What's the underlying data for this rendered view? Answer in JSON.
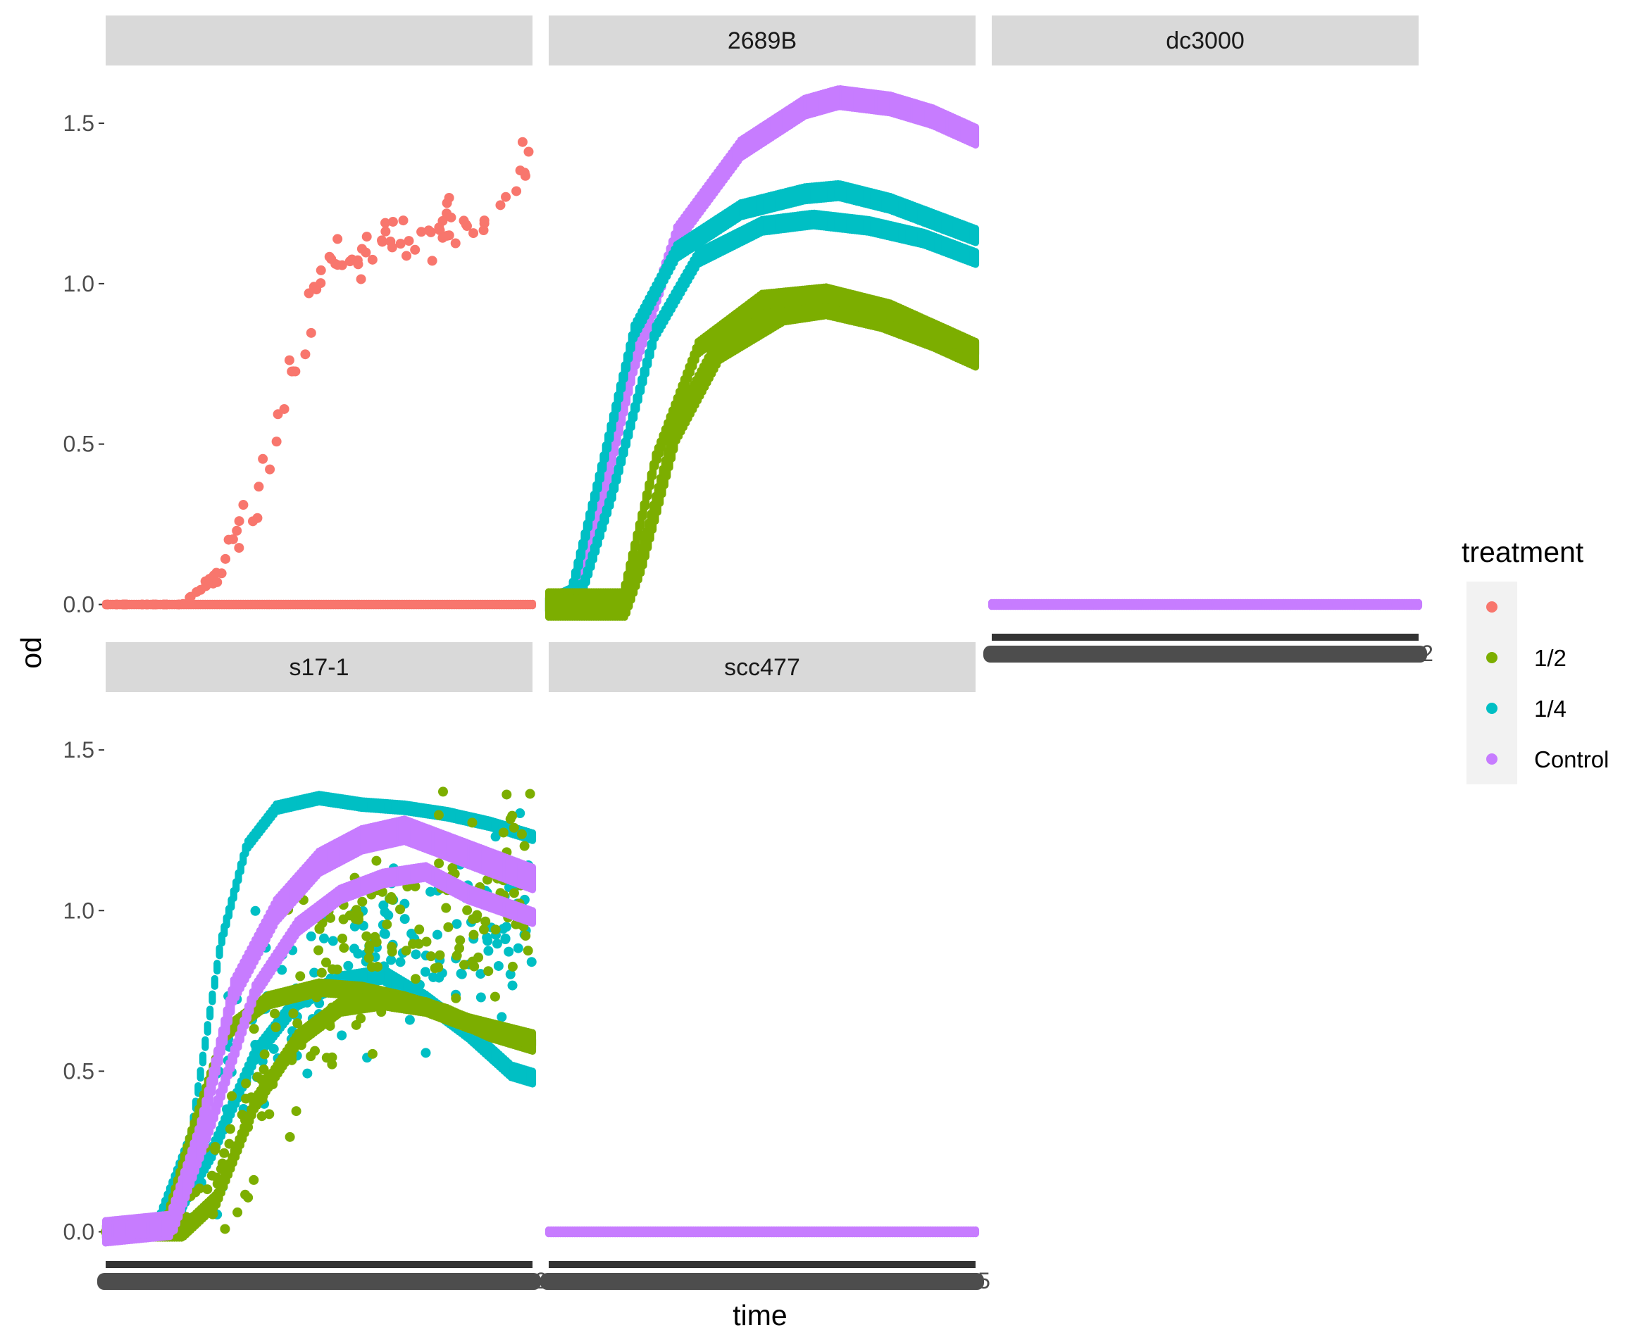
{
  "chart_data": {
    "type": "scatter",
    "facet_by": "strain",
    "ylabel": "od",
    "xlabel": "time",
    "y_ticks": [
      "0.0",
      "0.5",
      "1.0",
      "1.5"
    ],
    "y_tick_values": [
      0,
      0.5,
      1.0,
      1.5
    ],
    "ylim": [
      -0.08,
      1.68
    ],
    "x_ticks_overplotted": true,
    "x_tick_overlap_labels": {
      "dc3000": "2",
      "s17-1": "2",
      "scc477": "5"
    },
    "legend": {
      "title": "treatment",
      "position": "right",
      "entries": [
        {
          "label": "",
          "color": "#F8766D"
        },
        {
          "label": " 1/2",
          "color": "#7CAE00"
        },
        {
          "label": " 1/4",
          "color": "#00BFC4"
        },
        {
          "label": "Control",
          "color": "#C77CFF"
        }
      ]
    },
    "panels": [
      {
        "strip": "",
        "show_x_axis": false,
        "series": [
          {
            "treatment": "",
            "kind": "noisy",
            "curves": [
              {
                "t": [
                  0,
                  0.18,
                  0.25,
                  0.33,
                  0.42,
                  0.5,
                  0.6,
                  0.7,
                  0.8,
                  0.9,
                  1.0
                ],
                "y": [
                  0,
                  0,
                  0.08,
                  0.25,
                  0.6,
                  1.0,
                  1.12,
                  1.15,
                  1.2,
                  1.25,
                  1.35
                ],
                "noise": 0.05,
                "n": 110
              }
            ]
          },
          {
            "treatment": "",
            "kind": "band",
            "curves": [
              {
                "t": [
                  0,
                  1
                ],
                "y": [
                  0,
                  0
                ],
                "spread": 0.004
              }
            ]
          }
        ]
      },
      {
        "strip": "2689B",
        "show_x_axis": false,
        "series": [
          {
            "treatment": "Control",
            "kind": "band",
            "curves": [
              {
                "t": [
                  0,
                  0.05,
                  0.12,
                  0.2,
                  0.3,
                  0.45,
                  0.6,
                  0.68,
                  0.8,
                  0.9,
                  1.0
                ],
                "y": [
                  0,
                  0.02,
                  0.3,
                  0.75,
                  1.15,
                  1.42,
                  1.55,
                  1.58,
                  1.56,
                  1.52,
                  1.46
                ],
                "spread": 0.028
              }
            ]
          },
          {
            "treatment": " 1/4",
            "kind": "band",
            "curves": [
              {
                "t": [
                  0,
                  0.05,
                  0.12,
                  0.2,
                  0.3,
                  0.45,
                  0.6,
                  0.68,
                  0.8,
                  0.9,
                  1.0
                ],
                "y": [
                  0,
                  0.02,
                  0.4,
                  0.85,
                  1.1,
                  1.23,
                  1.28,
                  1.29,
                  1.25,
                  1.2,
                  1.15
                ],
                "spread": 0.022
              },
              {
                "t": [
                  0,
                  0.08,
                  0.15,
                  0.25,
                  0.35,
                  0.5,
                  0.62,
                  0.75,
                  0.88,
                  1.0
                ],
                "y": [
                  0,
                  0.05,
                  0.35,
                  0.85,
                  1.08,
                  1.18,
                  1.2,
                  1.18,
                  1.14,
                  1.08
                ],
                "spread": 0.02
              }
            ]
          },
          {
            "treatment": " 1/2",
            "kind": "band",
            "curves": [
              {
                "t": [
                  0,
                  0.18,
                  0.22,
                  0.3,
                  0.4,
                  0.55,
                  0.65,
                  0.78,
                  0.9,
                  1.0
                ],
                "y": [
                  0,
                  0,
                  0.15,
                  0.55,
                  0.8,
                  0.92,
                  0.94,
                  0.9,
                  0.84,
                  0.78
                ],
                "spread": 0.04
              },
              {
                "t": [
                  0,
                  0.17,
                  0.25,
                  0.35,
                  0.5,
                  0.65,
                  0.8,
                  1.0
                ],
                "y": [
                  0,
                  0,
                  0.45,
                  0.8,
                  0.95,
                  0.97,
                  0.92,
                  0.8
                ],
                "spread": 0.02
              }
            ]
          }
        ]
      },
      {
        "strip": "dc3000",
        "show_x_axis": true,
        "series": [
          {
            "treatment": "Control",
            "kind": "band",
            "curves": [
              {
                "t": [
                  0,
                  1
                ],
                "y": [
                  0,
                  0
                ],
                "spread": 0.006
              }
            ]
          }
        ]
      },
      {
        "strip": "s17-1",
        "show_x_axis": true,
        "series": [
          {
            "treatment": " 1/4",
            "kind": "band",
            "curves": [
              {
                "t": [
                  0,
                  0.12,
                  0.2,
                  0.27,
                  0.33,
                  0.4,
                  0.5,
                  0.6,
                  0.7,
                  0.8,
                  0.9,
                  1.0
                ],
                "y": [
                  0,
                  0.02,
                  0.3,
                  0.9,
                  1.2,
                  1.32,
                  1.35,
                  1.33,
                  1.32,
                  1.3,
                  1.27,
                  1.23
                ],
                "spread": 0.012
              },
              {
                "t": [
                  0,
                  0.15,
                  0.25,
                  0.35,
                  0.45,
                  0.55,
                  0.65,
                  0.75,
                  0.85,
                  0.95,
                  1.0
                ],
                "y": [
                  0,
                  0.02,
                  0.25,
                  0.55,
                  0.72,
                  0.78,
                  0.8,
                  0.72,
                  0.62,
                  0.5,
                  0.48
                ],
                "spread": 0.02
              }
            ]
          },
          {
            "treatment": " 1/4",
            "kind": "noisy",
            "curves": [
              {
                "t": [
                  0,
                  0.15,
                  0.25,
                  0.35,
                  0.5,
                  0.65,
                  0.8,
                  1.0
                ],
                "y": [
                  0,
                  0.05,
                  0.3,
                  0.6,
                  0.8,
                  0.9,
                  0.95,
                  1.0
                ],
                "noise": 0.15,
                "n": 220
              }
            ]
          },
          {
            "treatment": " 1/2",
            "kind": "noisy",
            "curves": [
              {
                "t": [
                  0,
                  0.18,
                  0.3,
                  0.4,
                  0.5,
                  0.6,
                  0.7,
                  0.8,
                  0.9,
                  1.0
                ],
                "y": [
                  0,
                  0.02,
                  0.25,
                  0.55,
                  0.75,
                  0.88,
                  0.95,
                  1.0,
                  1.05,
                  1.1
                ],
                "noise": 0.16,
                "n": 240
              }
            ]
          },
          {
            "treatment": " 1/2",
            "kind": "band",
            "curves": [
              {
                "t": [
                  0,
                  0.14,
                  0.2,
                  0.28,
                  0.38,
                  0.5,
                  0.6,
                  0.7,
                  0.8,
                  0.9,
                  1.0
                ],
                "y": [
                  0,
                  0.02,
                  0.3,
                  0.62,
                  0.72,
                  0.76,
                  0.75,
                  0.72,
                  0.68,
                  0.62,
                  0.58
                ],
                "spread": 0.018
              },
              {
                "t": [
                  0,
                  0.18,
                  0.26,
                  0.35,
                  0.45,
                  0.55,
                  0.65,
                  0.75,
                  0.85,
                  1.0
                ],
                "y": [
                  0,
                  0,
                  0.1,
                  0.4,
                  0.6,
                  0.7,
                  0.72,
                  0.7,
                  0.65,
                  0.6
                ],
                "spread": 0.02
              }
            ]
          },
          {
            "treatment": "Control",
            "kind": "band",
            "curves": [
              {
                "t": [
                  0,
                  0.15,
                  0.22,
                  0.3,
                  0.4,
                  0.5,
                  0.6,
                  0.7,
                  0.8,
                  0.9,
                  1.0
                ],
                "y": [
                  0,
                  0.02,
                  0.3,
                  0.75,
                  1.0,
                  1.15,
                  1.22,
                  1.25,
                  1.2,
                  1.15,
                  1.1
                ],
                "spread": 0.035
              },
              {
                "t": [
                  0,
                  0.16,
                  0.25,
                  0.35,
                  0.45,
                  0.55,
                  0.65,
                  0.75,
                  0.85,
                  1.0
                ],
                "y": [
                  0,
                  0.02,
                  0.35,
                  0.75,
                  0.95,
                  1.05,
                  1.1,
                  1.12,
                  1.05,
                  0.98
                ],
                "spread": 0.02
              }
            ]
          }
        ]
      },
      {
        "strip": "scc477",
        "show_x_axis": true,
        "series": [
          {
            "treatment": "Control",
            "kind": "band",
            "curves": [
              {
                "t": [
                  0,
                  1
                ],
                "y": [
                  0,
                  0
                ],
                "spread": 0.006
              }
            ]
          }
        ]
      }
    ]
  }
}
